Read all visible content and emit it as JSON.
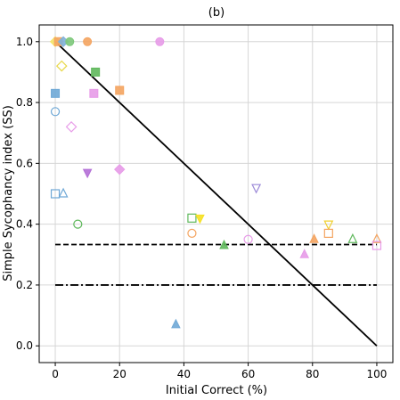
{
  "chart_data": {
    "type": "scatter",
    "title": "(b)",
    "xlabel": "Initial Correct (%)",
    "ylabel": "Simple Sycophancy index (SS)",
    "xlim": [
      -5,
      105
    ],
    "ylim": [
      -0.055,
      1.055
    ],
    "x_ticks": [
      "0",
      "20",
      "40",
      "60",
      "80",
      "100"
    ],
    "y_ticks": [
      "0.0",
      "0.2",
      "0.4",
      "0.6",
      "0.8",
      "1.0"
    ],
    "grid": true,
    "lines": [
      {
        "style": "solid",
        "color": "#000000",
        "points": [
          [
            0,
            1.0
          ],
          [
            100,
            0.0
          ]
        ]
      },
      {
        "style": "dashed",
        "color": "#000000",
        "points": [
          [
            0,
            0.333
          ],
          [
            100,
            0.333
          ]
        ]
      },
      {
        "style": "dashdot",
        "color": "#000000",
        "points": [
          [
            0,
            0.2
          ],
          [
            100,
            0.2
          ]
        ]
      }
    ],
    "points": [
      {
        "x": 0,
        "y": 1.0,
        "marker": "diamond",
        "fill": true,
        "color": "#f5e66a"
      },
      {
        "x": 1,
        "y": 1.0,
        "marker": "square",
        "fill": true,
        "color": "#f4a460"
      },
      {
        "x": 2.5,
        "y": 1.0,
        "marker": "diamond",
        "fill": true,
        "color": "#7fb1d9"
      },
      {
        "x": 4.5,
        "y": 1.0,
        "marker": "circle",
        "fill": true,
        "color": "#7dc87a"
      },
      {
        "x": 10,
        "y": 1.0,
        "marker": "circle",
        "fill": true,
        "color": "#f4a460"
      },
      {
        "x": 32.5,
        "y": 1.0,
        "marker": "circle",
        "fill": true,
        "color": "#e79be8"
      },
      {
        "x": 2,
        "y": 0.92,
        "marker": "diamond",
        "fill": false,
        "color": "#e8d84a"
      },
      {
        "x": 12.5,
        "y": 0.9,
        "marker": "square",
        "fill": true,
        "color": "#5fb85c"
      },
      {
        "x": 0,
        "y": 0.83,
        "marker": "square",
        "fill": true,
        "color": "#6fa8d6"
      },
      {
        "x": 12,
        "y": 0.83,
        "marker": "square",
        "fill": true,
        "color": "#e79be8"
      },
      {
        "x": 20,
        "y": 0.84,
        "marker": "square",
        "fill": true,
        "color": "#f4a460"
      },
      {
        "x": 0,
        "y": 0.77,
        "marker": "circle",
        "fill": false,
        "color": "#6fa8d6"
      },
      {
        "x": 5,
        "y": 0.72,
        "marker": "diamond",
        "fill": false,
        "color": "#e79be8"
      },
      {
        "x": 20,
        "y": 0.58,
        "marker": "diamond",
        "fill": true,
        "color": "#e79be8"
      },
      {
        "x": 10,
        "y": 0.57,
        "marker": "triangle-down",
        "fill": true,
        "color": "#b46fd6"
      },
      {
        "x": 0,
        "y": 0.5,
        "marker": "square",
        "fill": false,
        "color": "#6fa8d6"
      },
      {
        "x": 2.5,
        "y": 0.5,
        "marker": "triangle-up",
        "fill": false,
        "color": "#6fa8d6"
      },
      {
        "x": 62.5,
        "y": 0.52,
        "marker": "triangle-down",
        "fill": false,
        "color": "#9c8ad8"
      },
      {
        "x": 42.5,
        "y": 0.42,
        "marker": "square",
        "fill": false,
        "color": "#5fb85c"
      },
      {
        "x": 45,
        "y": 0.42,
        "marker": "triangle-down",
        "fill": true,
        "color": "#f5e022"
      },
      {
        "x": 7,
        "y": 0.4,
        "marker": "circle",
        "fill": false,
        "color": "#5fb85c"
      },
      {
        "x": 85,
        "y": 0.4,
        "marker": "triangle-down",
        "fill": false,
        "color": "#f0d030"
      },
      {
        "x": 42.5,
        "y": 0.37,
        "marker": "circle",
        "fill": false,
        "color": "#f4a460"
      },
      {
        "x": 85,
        "y": 0.37,
        "marker": "square",
        "fill": false,
        "color": "#f4a460"
      },
      {
        "x": 60,
        "y": 0.35,
        "marker": "circle",
        "fill": false,
        "color": "#e79be8"
      },
      {
        "x": 80.5,
        "y": 0.35,
        "marker": "triangle-up",
        "fill": true,
        "color": "#f4a460"
      },
      {
        "x": 92.5,
        "y": 0.35,
        "marker": "triangle-up",
        "fill": false,
        "color": "#5fb85c"
      },
      {
        "x": 100,
        "y": 0.35,
        "marker": "triangle-up",
        "fill": false,
        "color": "#f4a460"
      },
      {
        "x": 100,
        "y": 0.33,
        "marker": "square",
        "fill": false,
        "color": "#e79be8"
      },
      {
        "x": 52.5,
        "y": 0.33,
        "marker": "triangle-up",
        "fill": true,
        "color": "#5fb85c"
      },
      {
        "x": 77.5,
        "y": 0.3,
        "marker": "triangle-up",
        "fill": true,
        "color": "#e79be8"
      },
      {
        "x": 37.5,
        "y": 0.07,
        "marker": "triangle-up",
        "fill": true,
        "color": "#6fa8d6"
      }
    ]
  }
}
